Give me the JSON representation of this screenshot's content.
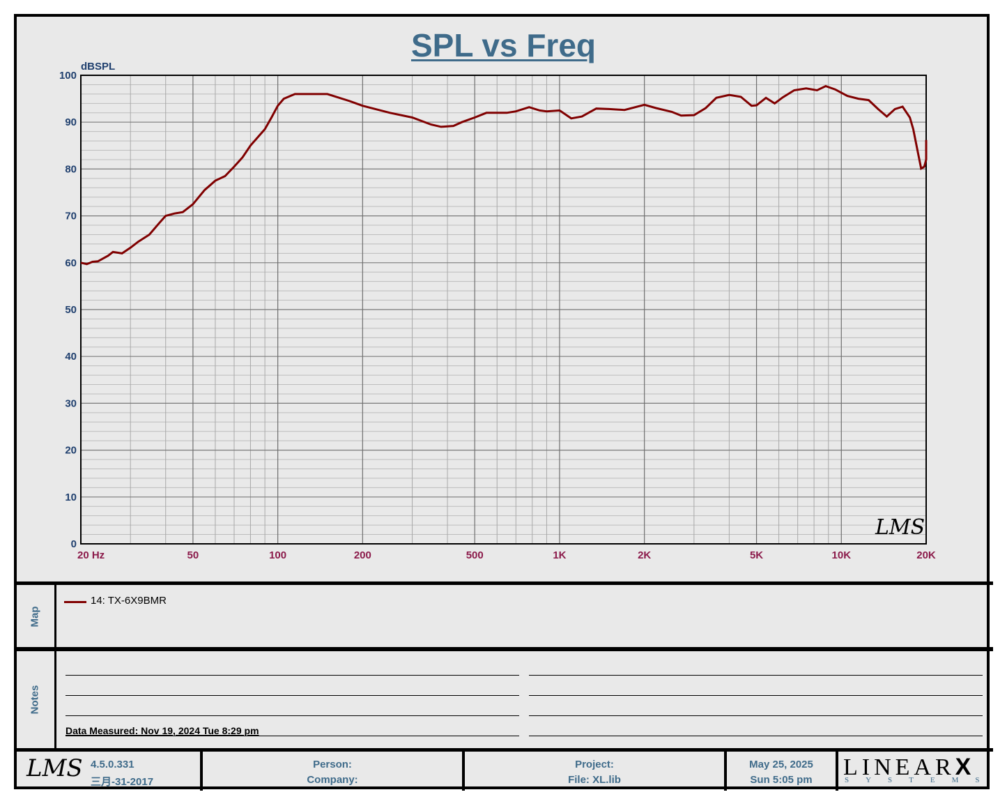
{
  "title": "SPL vs Freq",
  "chart_data": {
    "type": "line",
    "title": "SPL vs Freq",
    "ylabel": "dBSPL",
    "xlabel": "",
    "xscale": "log",
    "xlim": [
      20,
      20000
    ],
    "ylim": [
      0,
      100
    ],
    "grid": true,
    "y_ticks": [
      "0",
      "10",
      "20",
      "30",
      "40",
      "50",
      "60",
      "70",
      "80",
      "90",
      "100"
    ],
    "x_ticks": [
      {
        "value": 20,
        "label": "20  Hz"
      },
      {
        "value": 50,
        "label": "50"
      },
      {
        "value": 100,
        "label": "100"
      },
      {
        "value": 200,
        "label": "200"
      },
      {
        "value": 500,
        "label": "500"
      },
      {
        "value": 1000,
        "label": "1K"
      },
      {
        "value": 2000,
        "label": "2K"
      },
      {
        "value": 5000,
        "label": "5K"
      },
      {
        "value": 10000,
        "label": "10K"
      },
      {
        "value": 20000,
        "label": "20K"
      }
    ],
    "series": [
      {
        "name": "14: TX-6X9BMR",
        "color": "#800000",
        "points": [
          [
            20,
            60
          ],
          [
            21,
            59.7
          ],
          [
            22,
            60.2
          ],
          [
            23,
            60.3
          ],
          [
            25,
            61.5
          ],
          [
            26,
            62.3
          ],
          [
            28,
            62
          ],
          [
            30,
            63.2
          ],
          [
            32,
            64.5
          ],
          [
            35,
            66
          ],
          [
            38,
            68.5
          ],
          [
            40,
            70
          ],
          [
            43,
            70.5
          ],
          [
            46,
            70.8
          ],
          [
            50,
            72.5
          ],
          [
            55,
            75.5
          ],
          [
            60,
            77.5
          ],
          [
            65,
            78.5
          ],
          [
            70,
            80.5
          ],
          [
            75,
            82.5
          ],
          [
            80,
            85
          ],
          [
            90,
            88.5
          ],
          [
            95,
            91
          ],
          [
            100,
            93.5
          ],
          [
            105,
            95
          ],
          [
            115,
            96
          ],
          [
            130,
            96
          ],
          [
            150,
            96
          ],
          [
            180,
            94.5
          ],
          [
            200,
            93.5
          ],
          [
            250,
            92
          ],
          [
            300,
            91
          ],
          [
            350,
            89.5
          ],
          [
            380,
            89
          ],
          [
            420,
            89.2
          ],
          [
            450,
            90
          ],
          [
            500,
            91
          ],
          [
            550,
            92
          ],
          [
            650,
            92
          ],
          [
            700,
            92.3
          ],
          [
            780,
            93.2
          ],
          [
            850,
            92.5
          ],
          [
            900,
            92.3
          ],
          [
            1000,
            92.5
          ],
          [
            1100,
            90.8
          ],
          [
            1200,
            91.2
          ],
          [
            1350,
            92.9
          ],
          [
            1500,
            92.8
          ],
          [
            1700,
            92.6
          ],
          [
            2000,
            93.7
          ],
          [
            2200,
            93
          ],
          [
            2500,
            92.2
          ],
          [
            2700,
            91.4
          ],
          [
            3000,
            91.5
          ],
          [
            3300,
            93
          ],
          [
            3600,
            95.2
          ],
          [
            4000,
            95.8
          ],
          [
            4400,
            95.4
          ],
          [
            4800,
            93.5
          ],
          [
            5000,
            93.6
          ],
          [
            5400,
            95.2
          ],
          [
            5800,
            94
          ],
          [
            6200,
            95.3
          ],
          [
            6800,
            96.8
          ],
          [
            7500,
            97.2
          ],
          [
            8200,
            96.8
          ],
          [
            8800,
            97.7
          ],
          [
            9500,
            97
          ],
          [
            10500,
            95.6
          ],
          [
            11500,
            95
          ],
          [
            12500,
            94.7
          ],
          [
            13500,
            92.8
          ],
          [
            14500,
            91.2
          ],
          [
            15500,
            92.8
          ],
          [
            16500,
            93.3
          ],
          [
            17500,
            91
          ],
          [
            18000,
            88.5
          ],
          [
            18700,
            83.5
          ],
          [
            19200,
            80.1
          ],
          [
            19700,
            80.5
          ],
          [
            20300,
            82
          ],
          [
            21000,
            85.5
          ],
          [
            21500,
            86.2
          ],
          [
            22000,
            86
          ],
          [
            22500,
            83.8
          ]
        ]
      }
    ]
  },
  "watermark": "LMS",
  "map": {
    "label": "Map",
    "legend_label": "14: TX-6X9BMR",
    "legend_color": "#800000"
  },
  "notes": {
    "label": "Notes",
    "measured": "Data Measured: Nov 19, 2024  Tue  8:29 pm"
  },
  "footer": {
    "logo": "LMS",
    "version": "4.5.0.331",
    "build_date": "三月-31-2017",
    "person": "Person:",
    "company": "Company:",
    "project": "Project:",
    "file": "File: XL.lib",
    "date": "May 25, 2025",
    "time": "Sun  5:05 pm",
    "brand": "LINEAR",
    "brand_x": "X",
    "brand_sub": "SYSTEMS"
  }
}
